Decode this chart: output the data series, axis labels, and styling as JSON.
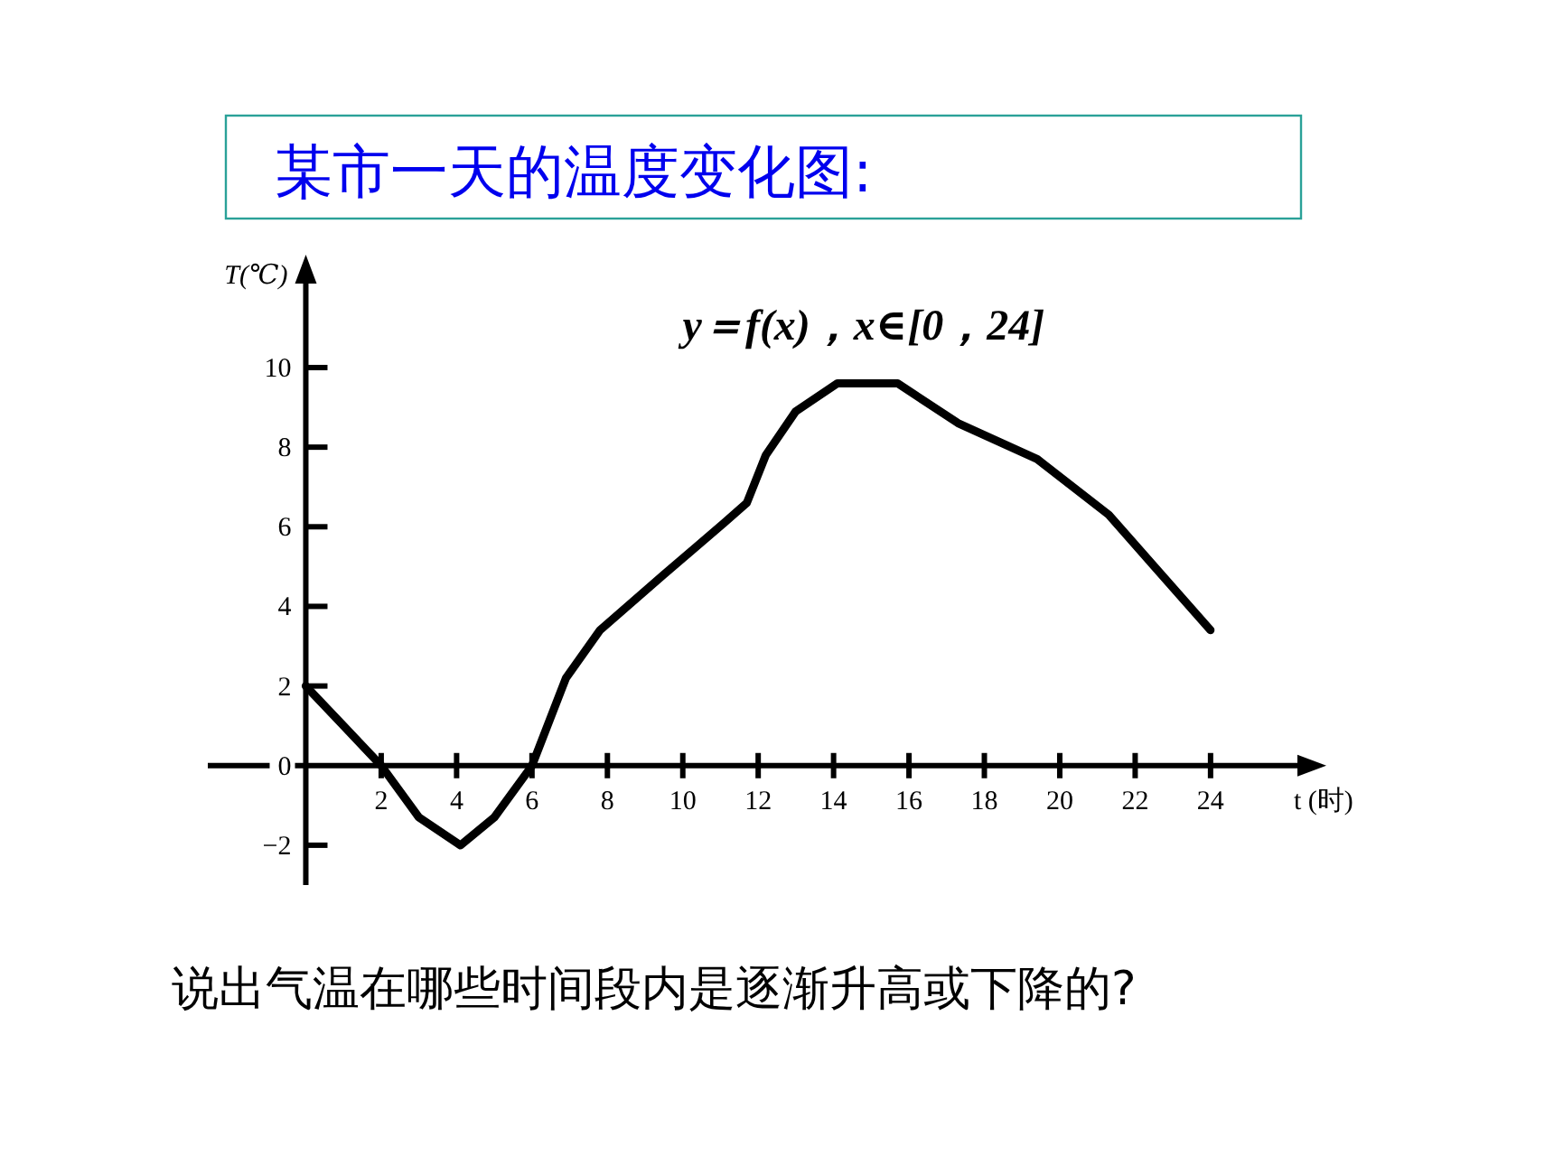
{
  "chart_data": {
    "type": "line",
    "title": "某市一天的温度变化图:",
    "subtitle": "y＝f(x)，x∈[0，24]",
    "xlabel": "t (时)",
    "ylabel": "T(℃)",
    "annotations": [
      "说出气温在哪些时间段内是逐渐升高或下降的?"
    ],
    "xlim": [
      -2.6,
      26.4
    ],
    "ylim": [
      -3,
      12.2
    ],
    "xticks": [
      2,
      4,
      6,
      8,
      10,
      12,
      14,
      16,
      18,
      20,
      22,
      24
    ],
    "yticks": [
      -2,
      0,
      2,
      4,
      6,
      8,
      10
    ],
    "marker": "none",
    "line_style": "solid",
    "series": [
      {
        "color": "#000000",
        "x": [
          0,
          1,
          2,
          3,
          4.1,
          5,
          6,
          6.9,
          7.8,
          9.5,
          11.1,
          11.7,
          12.2,
          13,
          14.1,
          15.7,
          17.3,
          19.4,
          21.3,
          24
        ],
        "values": [
          2,
          1,
          0,
          -1.3,
          -2,
          -1.3,
          0,
          2.2,
          3.4,
          4.8,
          6.1,
          6.6,
          7.8,
          8.9,
          9.6,
          9.6,
          8.6,
          7.7,
          6.3,
          3.4
        ]
      }
    ]
  }
}
